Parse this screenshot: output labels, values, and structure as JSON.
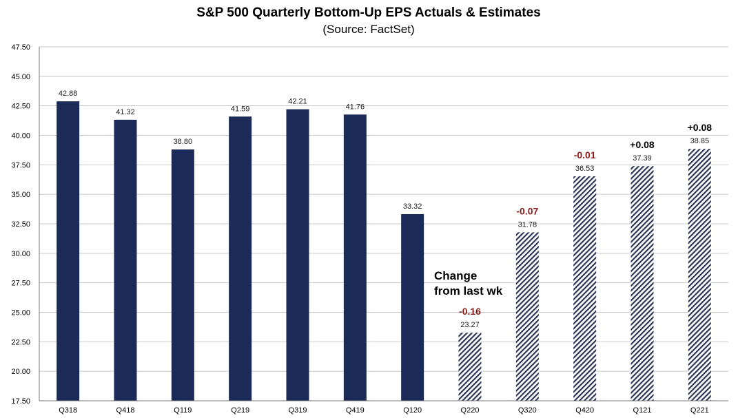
{
  "chart_data": {
    "type": "bar",
    "title": "S&P 500 Quarterly Bottom-Up EPS Actuals & Estimates",
    "subtitle": "(Source: FactSet)",
    "xlabel": "",
    "ylabel": "",
    "ylim": [
      17.5,
      47.5
    ],
    "y_ticks": [
      "17.50",
      "20.00",
      "22.50",
      "25.00",
      "27.50",
      "30.00",
      "32.50",
      "35.00",
      "37.50",
      "40.00",
      "42.50",
      "45.00",
      "47.50"
    ],
    "grid": true,
    "categories": [
      "Q318",
      "Q418",
      "Q119",
      "Q219",
      "Q319",
      "Q419",
      "Q120",
      "Q220",
      "Q320",
      "Q420",
      "Q121",
      "Q221"
    ],
    "values": [
      42.88,
      41.32,
      38.8,
      41.59,
      42.21,
      41.76,
      33.32,
      23.27,
      31.78,
      36.53,
      37.39,
      38.85
    ],
    "value_labels": [
      "42.88",
      "41.32",
      "38.80",
      "41.59",
      "42.21",
      "41.76",
      "33.32",
      "23.27",
      "31.78",
      "36.53",
      "37.39",
      "38.85"
    ],
    "bar_kind": [
      "actual",
      "actual",
      "actual",
      "actual",
      "actual",
      "actual",
      "actual",
      "estimate",
      "estimate",
      "estimate",
      "estimate",
      "estimate"
    ],
    "change_labels": [
      "",
      "",
      "",
      "",
      "",
      "",
      "",
      "-0.16",
      "-0.07",
      "-0.01",
      "+0.08",
      "+0.08"
    ],
    "annotation": {
      "line1": "Change",
      "line2": "from last wk"
    },
    "colors": {
      "actual": "#1b2a56",
      "estimate_stripe": "#2b3556",
      "negative": "#8b1a1a",
      "positive": "#000000",
      "grid": "#c8c8c8"
    }
  }
}
